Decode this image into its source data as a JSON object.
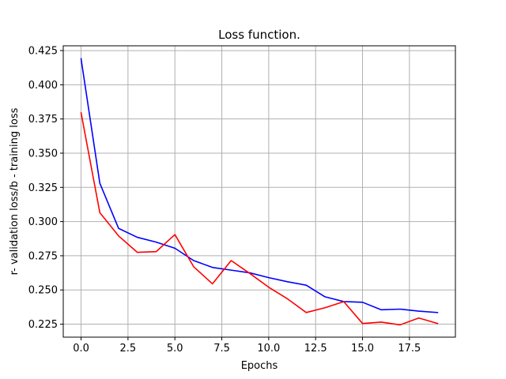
{
  "chart_data": {
    "type": "line",
    "title": "Loss function.",
    "xlabel": "Epochs",
    "ylabel": "r- validation loss/b - training loss",
    "xlim": [
      -0.95,
      19.95
    ],
    "ylim": [
      0.2155,
      0.4285
    ],
    "xticks": [
      0.0,
      2.5,
      5.0,
      7.5,
      10.0,
      12.5,
      15.0,
      17.5
    ],
    "xtick_labels": [
      "0.0",
      "2.5",
      "5.0",
      "7.5",
      "10.0",
      "12.5",
      "15.0",
      "17.5"
    ],
    "yticks": [
      0.225,
      0.25,
      0.275,
      0.3,
      0.325,
      0.35,
      0.375,
      0.4,
      0.425
    ],
    "ytick_labels": [
      "0.225",
      "0.250",
      "0.275",
      "0.300",
      "0.325",
      "0.350",
      "0.375",
      "0.400",
      "0.425"
    ],
    "grid": true,
    "x": [
      0,
      1,
      2,
      3,
      4,
      5,
      6,
      7,
      8,
      9,
      10,
      11,
      12,
      13,
      14,
      15,
      16,
      17,
      18,
      19
    ],
    "series": [
      {
        "color": "#0000ff",
        "values": [
          0.419,
          0.328,
          0.295,
          0.2885,
          0.285,
          0.2805,
          0.2715,
          0.2665,
          0.2645,
          0.2625,
          0.259,
          0.256,
          0.2535,
          0.245,
          0.2415,
          0.241,
          0.2355,
          0.236,
          0.2345,
          0.2335
        ]
      },
      {
        "color": "#ff0000",
        "values": [
          0.3795,
          0.3065,
          0.2895,
          0.2775,
          0.278,
          0.2905,
          0.267,
          0.2545,
          0.2715,
          0.262,
          0.252,
          0.2435,
          0.2335,
          0.237,
          0.2415,
          0.2255,
          0.2265,
          0.2245,
          0.2295,
          0.2255
        ]
      }
    ]
  }
}
